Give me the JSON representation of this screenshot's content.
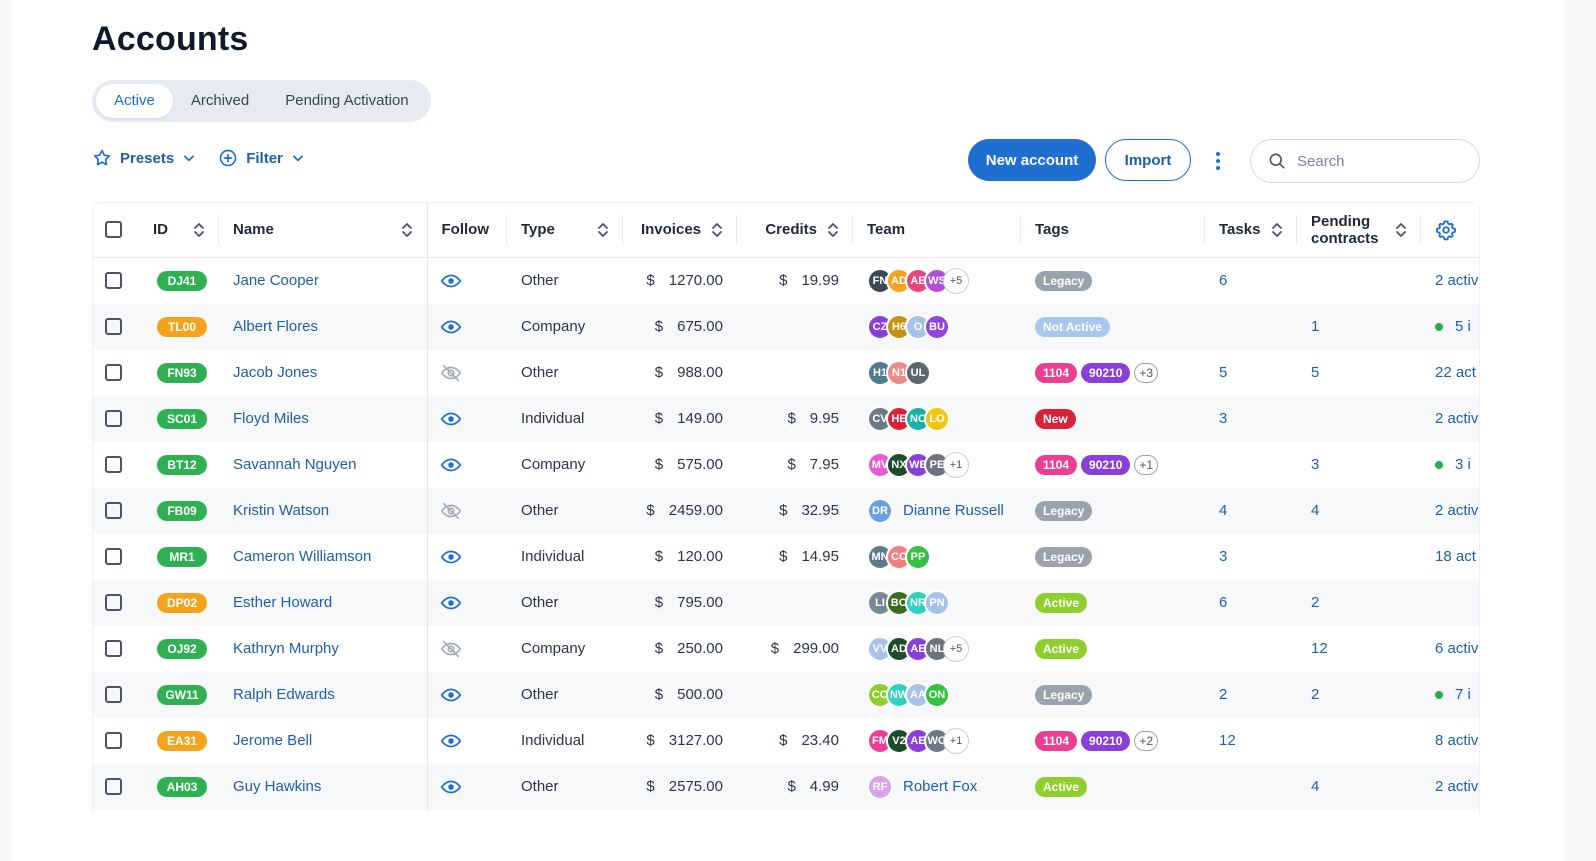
{
  "page_title": "Accounts",
  "tabs": [
    {
      "label": "Active",
      "active": true
    },
    {
      "label": "Archived",
      "active": false
    },
    {
      "label": "Pending Activation",
      "active": false
    }
  ],
  "toolbar": {
    "presets_label": "Presets",
    "filter_label": "Filter",
    "new_account_label": "New account",
    "import_label": "Import",
    "search_placeholder": "Search"
  },
  "columns": [
    "ID",
    "Name",
    "Follow",
    "Type",
    "Invoices",
    "Credits",
    "Team",
    "Tags",
    "Tasks",
    "Pending contracts"
  ],
  "colors": {
    "accent": "#1f6fd1",
    "link": "#1f5fa8",
    "id_green": "#2fb052",
    "id_orange": "#f5a31a",
    "tag_legacy": "#9aa3ad",
    "tag_not_active": "#a7c7ee",
    "tag_pink": "#ec3f93",
    "tag_purple": "#8b3fd9",
    "tag_new": "#d9223a",
    "tag_active": "#8fce2d"
  },
  "rows": [
    {
      "id": "DJ41",
      "id_color": "#2fb052",
      "name": "Jane Cooper",
      "follow": "eye-icon",
      "type": "Other",
      "invoice": "1270.00",
      "credit": "19.99",
      "team": [
        {
          "i": "FN",
          "c": "#3d4a55"
        },
        {
          "i": "AD",
          "c": "#f4a31d"
        },
        {
          "i": "AE",
          "c": "#e8467c"
        },
        {
          "i": "WS",
          "c": "#b34fd6"
        }
      ],
      "team_more": "+5",
      "tags": [
        {
          "t": "Legacy",
          "c": "#9aa3ad"
        }
      ],
      "tags_more": "",
      "tasks": "6",
      "pending": "",
      "dot": false,
      "last": "2 activ"
    },
    {
      "id": "TL00",
      "id_color": "#f5a31a",
      "name": "Albert Flores",
      "follow": "eye-icon",
      "type": "Company",
      "invoice": "675.00",
      "credit": "",
      "team": [
        {
          "i": "CZ",
          "c": "#8b3fd9"
        },
        {
          "i": "H6",
          "c": "#c69214"
        },
        {
          "i": "O",
          "c": "#a9c2ec"
        },
        {
          "i": "BU",
          "c": "#9146d6"
        }
      ],
      "team_more": "",
      "tags": [
        {
          "t": "Not Active",
          "c": "#a7c7ee"
        }
      ],
      "tags_more": "",
      "tasks": "",
      "pending": "1",
      "dot": true,
      "last": "5 i"
    },
    {
      "id": "FN93",
      "id_color": "#2fb052",
      "name": "Jacob Jones",
      "follow": "eye-off-icon",
      "type": "Other",
      "invoice": "988.00",
      "credit": "",
      "team": [
        {
          "i": "H1",
          "c": "#4f7a8f"
        },
        {
          "i": "N1",
          "c": "#ee8a8a"
        },
        {
          "i": "UL",
          "c": "#5e6770"
        }
      ],
      "team_more": "",
      "tags": [
        {
          "t": "1104",
          "c": "#ec3f93"
        },
        {
          "t": "90210",
          "c": "#8b3fd9"
        }
      ],
      "tags_more": "+3",
      "tasks": "5",
      "pending": "5",
      "dot": false,
      "last": "22 act"
    },
    {
      "id": "SC01",
      "id_color": "#2fb052",
      "name": "Floyd Miles",
      "follow": "eye-icon",
      "type": "Individual",
      "invoice": "149.00",
      "credit": "9.95",
      "team": [
        {
          "i": "CV",
          "c": "#6b7a86"
        },
        {
          "i": "HE",
          "c": "#d9223a"
        },
        {
          "i": "NC",
          "c": "#18b3a4"
        },
        {
          "i": "LO",
          "c": "#f2c512"
        }
      ],
      "team_more": "",
      "tags": [
        {
          "t": "New",
          "c": "#d9223a"
        }
      ],
      "tags_more": "",
      "tasks": "3",
      "pending": "",
      "dot": false,
      "last": "2 activ"
    },
    {
      "id": "BT12",
      "id_color": "#2fb052",
      "name": "Savannah Nguyen",
      "follow": "eye-icon",
      "type": "Company",
      "invoice": "575.00",
      "credit": "7.95",
      "team": [
        {
          "i": "MV",
          "c": "#e85ad2"
        },
        {
          "i": "NX",
          "c": "#1b4d2b"
        },
        {
          "i": "WE",
          "c": "#8b3fd9"
        },
        {
          "i": "PE",
          "c": "#6b7280"
        }
      ],
      "team_more": "+1",
      "tags": [
        {
          "t": "1104",
          "c": "#ec3f93"
        },
        {
          "t": "90210",
          "c": "#8b3fd9"
        }
      ],
      "tags_more": "+1",
      "tasks": "",
      "pending": "3",
      "dot": true,
      "last": "3 i"
    },
    {
      "id": "FB09",
      "id_color": "#2fb052",
      "name": "Kristin Watson",
      "follow": "eye-off-icon",
      "type": "Other",
      "invoice": "2459.00",
      "credit": "32.95",
      "team": [
        {
          "i": "DR",
          "c": "#6aa0e0"
        }
      ],
      "team_more": "",
      "team_single": "Dianne Russell",
      "tags": [
        {
          "t": "Legacy",
          "c": "#9aa3ad"
        }
      ],
      "tags_more": "",
      "tasks": "4",
      "pending": "4",
      "dot": false,
      "last": "2 activ"
    },
    {
      "id": "MR1",
      "id_color": "#2fb052",
      "name": "Cameron Williamson",
      "follow": "eye-icon",
      "type": "Individual",
      "invoice": "120.00",
      "credit": "14.95",
      "team": [
        {
          "i": "MN",
          "c": "#5d7b8a"
        },
        {
          "i": "CC",
          "c": "#f07f7f"
        },
        {
          "i": "PP",
          "c": "#35c244"
        }
      ],
      "team_more": "",
      "tags": [
        {
          "t": "Legacy",
          "c": "#9aa3ad"
        }
      ],
      "tags_more": "",
      "tasks": "3",
      "pending": "",
      "dot": false,
      "last": "18 act"
    },
    {
      "id": "DP02",
      "id_color": "#f5a31a",
      "name": "Esther Howard",
      "follow": "eye-icon",
      "type": "Other",
      "invoice": "795.00",
      "credit": "",
      "team": [
        {
          "i": "LI",
          "c": "#7b8794"
        },
        {
          "i": "BO",
          "c": "#3b6d1f"
        },
        {
          "i": "NR",
          "c": "#2fd1c2"
        },
        {
          "i": "PN",
          "c": "#a9c2ec"
        }
      ],
      "team_more": "",
      "tags": [
        {
          "t": "Active",
          "c": "#8fce2d"
        }
      ],
      "tags_more": "",
      "tasks": "6",
      "pending": "2",
      "dot": false,
      "last": ""
    },
    {
      "id": "OJ92",
      "id_color": "#2fb052",
      "name": "Kathryn Murphy",
      "follow": "eye-off-icon",
      "type": "Company",
      "invoice": "250.00",
      "credit": "299.00",
      "team": [
        {
          "i": "VV",
          "c": "#a9c2ec"
        },
        {
          "i": "AD",
          "c": "#1b4d2b"
        },
        {
          "i": "AE",
          "c": "#8b3fd9"
        },
        {
          "i": "NL",
          "c": "#6b7280"
        }
      ],
      "team_more": "+5",
      "tags": [
        {
          "t": "Active",
          "c": "#8fce2d"
        }
      ],
      "tags_more": "",
      "tasks": "",
      "pending": "12",
      "dot": false,
      "last": "6 activ"
    },
    {
      "id": "GW11",
      "id_color": "#2fb052",
      "name": "Ralph Edwards",
      "follow": "eye-icon",
      "type": "Other",
      "invoice": "500.00",
      "credit": "",
      "team": [
        {
          "i": "CO",
          "c": "#8fce2d"
        },
        {
          "i": "NW",
          "c": "#2fd1c2"
        },
        {
          "i": "AA",
          "c": "#a9c2ec"
        },
        {
          "i": "ON",
          "c": "#35c244"
        }
      ],
      "team_more": "",
      "tags": [
        {
          "t": "Legacy",
          "c": "#9aa3ad"
        }
      ],
      "tags_more": "",
      "tasks": "2",
      "pending": "2",
      "dot": true,
      "last": "7 i"
    },
    {
      "id": "EA31",
      "id_color": "#f5a31a",
      "name": "Jerome Bell",
      "follow": "eye-icon",
      "type": "Individual",
      "invoice": "3127.00",
      "credit": "23.40",
      "team": [
        {
          "i": "FM",
          "c": "#ec3f93"
        },
        {
          "i": "V2",
          "c": "#1b4d2b"
        },
        {
          "i": "AE",
          "c": "#8b3fd9"
        },
        {
          "i": "WO",
          "c": "#6b7a86"
        }
      ],
      "team_more": "+1",
      "tags": [
        {
          "t": "1104",
          "c": "#ec3f93"
        },
        {
          "t": "90210",
          "c": "#8b3fd9"
        }
      ],
      "tags_more": "+2",
      "tasks": "12",
      "pending": "",
      "dot": false,
      "last": "8 activ"
    },
    {
      "id": "AH03",
      "id_color": "#2fb052",
      "name": "Guy Hawkins",
      "follow": "eye-icon",
      "type": "Other",
      "invoice": "2575.00",
      "credit": "4.99",
      "team": [
        {
          "i": "RF",
          "c": "#d7a4e8"
        }
      ],
      "team_more": "",
      "team_single": "Robert Fox",
      "tags": [
        {
          "t": "Active",
          "c": "#8fce2d"
        }
      ],
      "tags_more": "",
      "tasks": "",
      "pending": "4",
      "dot": false,
      "last": "2 activ"
    }
  ]
}
